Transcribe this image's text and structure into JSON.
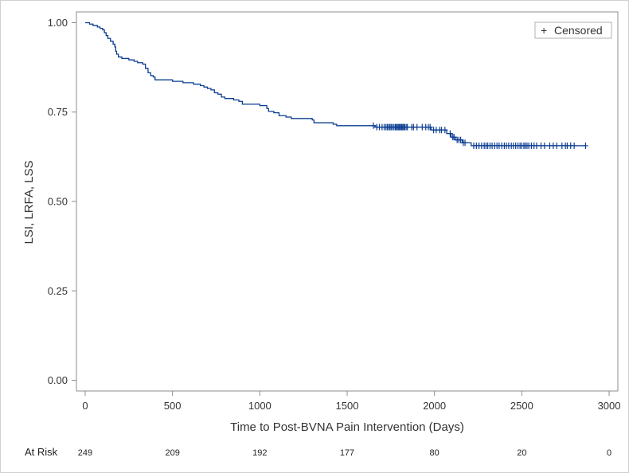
{
  "chart_data": {
    "type": "line",
    "subtype": "kaplan-meier-survival",
    "title": "",
    "xlabel": "Time to Post-BVNA Pain Intervention (Days)",
    "ylabel": "LSI, LRFA, LSS",
    "xlim": [
      -50,
      3050
    ],
    "ylim": [
      -0.03,
      1.03
    ],
    "xticks": [
      0,
      500,
      1000,
      1500,
      2000,
      2500,
      3000
    ],
    "yticks": [
      0.0,
      0.25,
      0.5,
      0.75,
      1.0
    ],
    "ytick_labels": [
      "0.00",
      "0.25",
      "0.50",
      "0.75",
      "1.00"
    ],
    "grid": false,
    "legend": {
      "position": "top-right",
      "entries": [
        {
          "symbol": "+",
          "label": "Censored"
        }
      ]
    },
    "line_color": "#0b3d91",
    "series": [
      {
        "name": "Censored",
        "steps": [
          [
            0,
            1.0
          ],
          [
            25,
            0.996
          ],
          [
            45,
            0.992
          ],
          [
            70,
            0.988
          ],
          [
            85,
            0.984
          ],
          [
            100,
            0.98
          ],
          [
            110,
            0.972
          ],
          [
            120,
            0.964
          ],
          [
            130,
            0.956
          ],
          [
            145,
            0.948
          ],
          [
            160,
            0.94
          ],
          [
            170,
            0.932
          ],
          [
            175,
            0.92
          ],
          [
            180,
            0.912
          ],
          [
            190,
            0.904
          ],
          [
            210,
            0.9
          ],
          [
            250,
            0.896
          ],
          [
            280,
            0.892
          ],
          [
            300,
            0.888
          ],
          [
            330,
            0.884
          ],
          [
            345,
            0.872
          ],
          [
            360,
            0.86
          ],
          [
            375,
            0.852
          ],
          [
            390,
            0.848
          ],
          [
            400,
            0.84
          ],
          [
            500,
            0.836
          ],
          [
            560,
            0.832
          ],
          [
            620,
            0.828
          ],
          [
            660,
            0.824
          ],
          [
            680,
            0.82
          ],
          [
            700,
            0.816
          ],
          [
            720,
            0.812
          ],
          [
            740,
            0.804
          ],
          [
            760,
            0.8
          ],
          [
            780,
            0.792
          ],
          [
            800,
            0.788
          ],
          [
            850,
            0.784
          ],
          [
            880,
            0.78
          ],
          [
            900,
            0.772
          ],
          [
            1000,
            0.768
          ],
          [
            1040,
            0.76
          ],
          [
            1050,
            0.752
          ],
          [
            1080,
            0.748
          ],
          [
            1110,
            0.74
          ],
          [
            1150,
            0.736
          ],
          [
            1180,
            0.732
          ],
          [
            1300,
            0.728
          ],
          [
            1310,
            0.72
          ],
          [
            1420,
            0.716
          ],
          [
            1440,
            0.712
          ],
          [
            1660,
            0.708
          ],
          [
            1980,
            0.7
          ],
          [
            2070,
            0.69
          ],
          [
            2095,
            0.68
          ],
          [
            2120,
            0.672
          ],
          [
            2160,
            0.664
          ],
          [
            2210,
            0.656
          ],
          [
            2870,
            0.656
          ]
        ],
        "censored_times": [
          1650,
          1670,
          1685,
          1700,
          1712,
          1722,
          1730,
          1738,
          1745,
          1752,
          1760,
          1768,
          1776,
          1782,
          1788,
          1795,
          1800,
          1806,
          1812,
          1818,
          1824,
          1830,
          1838,
          1845,
          1870,
          1880,
          1900,
          1930,
          1950,
          1965,
          1975,
          1995,
          2010,
          2030,
          2040,
          2060,
          2090,
          2105,
          2112,
          2130,
          2140,
          2150,
          2165,
          2175,
          2225,
          2240,
          2255,
          2270,
          2285,
          2295,
          2305,
          2318,
          2330,
          2345,
          2358,
          2370,
          2385,
          2400,
          2412,
          2425,
          2440,
          2452,
          2465,
          2478,
          2490,
          2500,
          2512,
          2520,
          2530,
          2540,
          2555,
          2570,
          2585,
          2610,
          2630,
          2660,
          2680,
          2700,
          2730,
          2750,
          2760,
          2780,
          2800,
          2865
        ]
      }
    ],
    "at_risk": {
      "label": "At Risk",
      "times": [
        0,
        500,
        1000,
        1500,
        2000,
        2500,
        3000
      ],
      "counts": [
        "249",
        "209",
        "192",
        "177",
        "80",
        "20",
        "0"
      ]
    }
  }
}
